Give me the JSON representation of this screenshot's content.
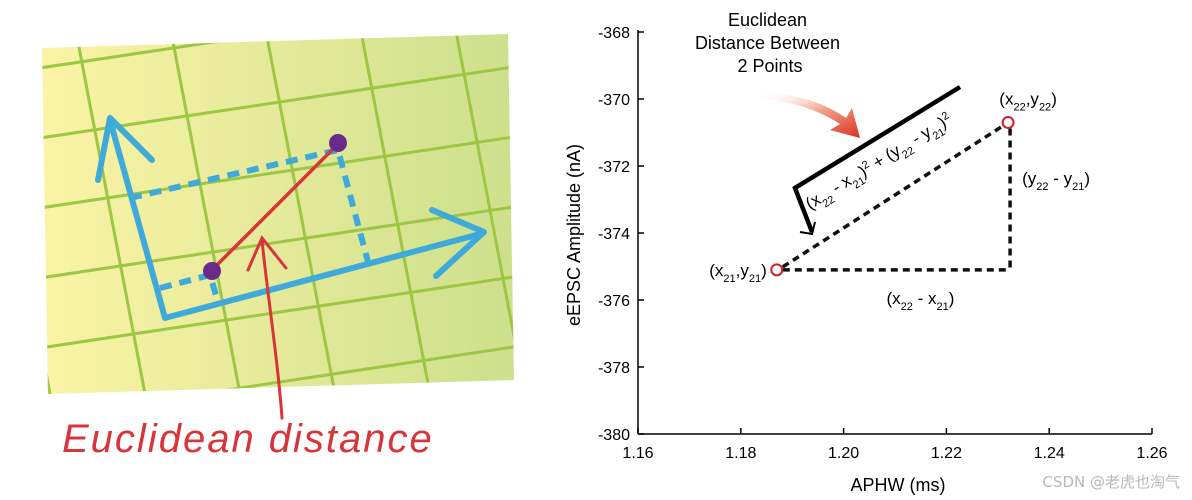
{
  "left_illustration": {
    "caption": "Euclidean distance",
    "colors": {
      "grid_fill_start": "#fbf1a0",
      "grid_fill_end": "#cfe08a",
      "grid_line": "#9cc644",
      "axis": "#3fa9d9",
      "point": "#6a2a8a",
      "distance_line": "#d9343a",
      "caption": "#d9343a"
    }
  },
  "chart_data": {
    "type": "scatter",
    "xlabel": "APHW (ms)",
    "ylabel": "eEPSC Amplitude (nA)",
    "xlim": [
      1.16,
      1.26
    ],
    "ylim": [
      -380,
      -368
    ],
    "x_ticks": [
      1.16,
      1.18,
      1.2,
      1.22,
      1.24,
      1.26
    ],
    "y_ticks": [
      -368,
      -370,
      -372,
      -374,
      -376,
      -378,
      -380
    ],
    "x_tick_labels": [
      "1.16",
      "1.18",
      "1.20",
      "1.22",
      "1.24",
      "1.26"
    ],
    "y_tick_labels": [
      "-368",
      "-370",
      "-372",
      "-374",
      "-376",
      "-378",
      "-380"
    ],
    "points": [
      {
        "x": 1.187,
        "y": -375.1,
        "label_main": "(x",
        "sub1": "21",
        "mid": ",y",
        "sub2": "21",
        "end": ")"
      },
      {
        "x": 1.232,
        "y": -370.7,
        "label_main": "(x",
        "sub1": "22",
        "mid": ",y",
        "sub2": "22",
        "end": ")"
      }
    ],
    "annotation_title": [
      "Euclidean",
      "Distance Between",
      "2 Points"
    ],
    "delta_x_label": {
      "open": "(x",
      "sub1": "22",
      "mid": " - x",
      "sub2": "21",
      "close": ")"
    },
    "delta_y_label": {
      "open": "(y",
      "sub1": "22",
      "mid": " - y",
      "sub2": "21",
      "close": ")"
    },
    "formula": {
      "p1": "(x",
      "s1": "22",
      "p2": " - x",
      "s2": "21",
      "p3": ")",
      "sup1": "2",
      "p4": " + (y",
      "s3": "22",
      "p5": " - y",
      "s4": "21",
      "p6": ")",
      "sup2": "2"
    },
    "colors": {
      "point": "#cc2222",
      "dash": "#111111",
      "axis": "#000000",
      "arrow": "#d83b2a"
    }
  },
  "watermark": "CSDN @老虎也淘气"
}
